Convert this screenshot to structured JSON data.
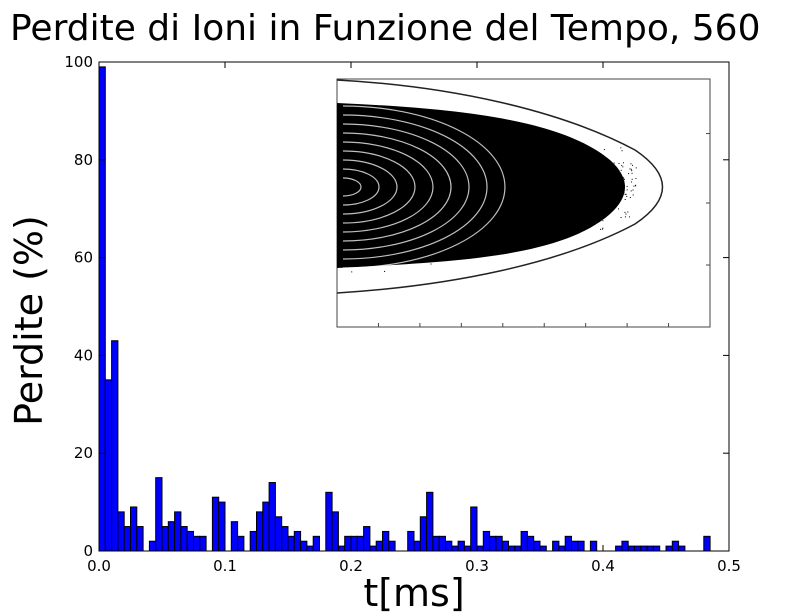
{
  "chart_data": {
    "type": "bar",
    "title": "Perdite di Ioni in Funzione del Tempo, 560",
    "xlabel": "t[ms]",
    "ylabel": "Perdite (%)",
    "xlim": [
      0.0,
      0.5
    ],
    "ylim": [
      0,
      100
    ],
    "xticks": [
      "0.0",
      "0.1",
      "0.2",
      "0.3",
      "0.4",
      "0.5"
    ],
    "yticks": [
      "0",
      "20",
      "40",
      "60",
      "80",
      "100"
    ],
    "bar_width": 0.005,
    "bar_color": "#0000ff",
    "grid": false,
    "legend": "none",
    "inset": "phase-space scatter plot (black points) with boundary contour, no axis labels",
    "x": [
      0.0,
      0.005,
      0.01,
      0.015,
      0.02,
      0.025,
      0.03,
      0.035,
      0.04,
      0.045,
      0.05,
      0.055,
      0.06,
      0.065,
      0.07,
      0.075,
      0.08,
      0.085,
      0.09,
      0.095,
      0.1,
      0.105,
      0.11,
      0.115,
      0.12,
      0.125,
      0.13,
      0.135,
      0.14,
      0.145,
      0.15,
      0.155,
      0.16,
      0.165,
      0.17,
      0.175,
      0.18,
      0.185,
      0.19,
      0.195,
      0.2,
      0.205,
      0.21,
      0.215,
      0.22,
      0.225,
      0.23,
      0.235,
      0.24,
      0.245,
      0.25,
      0.255,
      0.26,
      0.265,
      0.27,
      0.275,
      0.28,
      0.285,
      0.29,
      0.295,
      0.3,
      0.305,
      0.31,
      0.315,
      0.32,
      0.325,
      0.33,
      0.335,
      0.34,
      0.345,
      0.35,
      0.355,
      0.36,
      0.365,
      0.37,
      0.375,
      0.38,
      0.385,
      0.39,
      0.395,
      0.4,
      0.405,
      0.41,
      0.415,
      0.42,
      0.425,
      0.43,
      0.435,
      0.44,
      0.445,
      0.45,
      0.455,
      0.46,
      0.465,
      0.47,
      0.475,
      0.48
    ],
    "values": [
      99,
      35,
      43,
      8,
      5,
      9,
      5,
      0,
      2,
      15,
      5,
      6,
      8,
      5,
      4,
      3,
      3,
      0,
      11,
      10,
      0,
      6,
      3,
      0,
      4,
      8,
      10,
      14,
      7,
      5,
      3,
      4,
      2,
      1,
      3,
      0,
      12,
      8,
      1,
      3,
      3,
      3,
      5,
      1,
      2,
      4,
      2,
      0,
      0,
      4,
      2,
      7,
      12,
      3,
      3,
      2,
      1,
      2,
      1,
      9,
      1,
      4,
      3,
      3,
      2,
      1,
      1,
      4,
      3,
      2,
      1,
      0,
      2,
      1,
      3,
      2,
      2,
      0,
      2,
      0,
      0,
      0,
      1,
      2,
      1,
      1,
      1,
      1,
      1,
      0,
      1,
      2,
      1,
      0,
      0,
      0,
      3
    ]
  }
}
